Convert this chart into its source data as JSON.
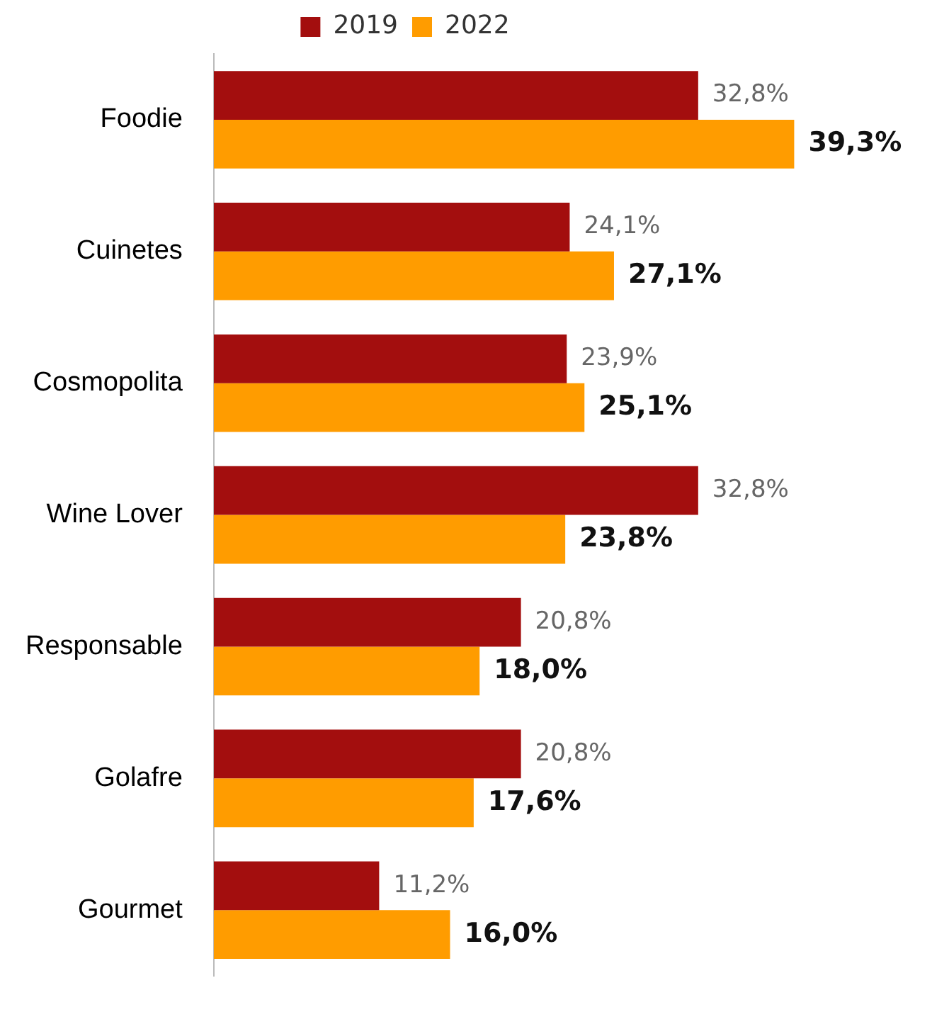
{
  "chart_data": {
    "type": "bar",
    "orientation": "horizontal",
    "categories": [
      "Foodie",
      "Cuinetes",
      "Cosmopolita",
      "Wine Lover",
      "Responsable",
      "Golafre",
      "Gourmet"
    ],
    "series": [
      {
        "name": "2019",
        "color": "#a30e0e",
        "values": [
          32.8,
          24.1,
          23.9,
          32.8,
          20.8,
          20.8,
          11.2
        ],
        "value_labels": [
          "32,8%",
          "24,1%",
          "23,9%",
          "32,8%",
          "20,8%",
          "20,8%",
          "11,2%"
        ]
      },
      {
        "name": "2022",
        "color": "#ff9c00",
        "values": [
          39.3,
          27.1,
          25.1,
          23.8,
          18.0,
          17.6,
          16.0
        ],
        "value_labels": [
          "39,3%",
          "27,1%",
          "25,1%",
          "23,8%",
          "18,0%",
          "17,6%",
          "16,0%"
        ]
      }
    ],
    "legend": "top"
  }
}
